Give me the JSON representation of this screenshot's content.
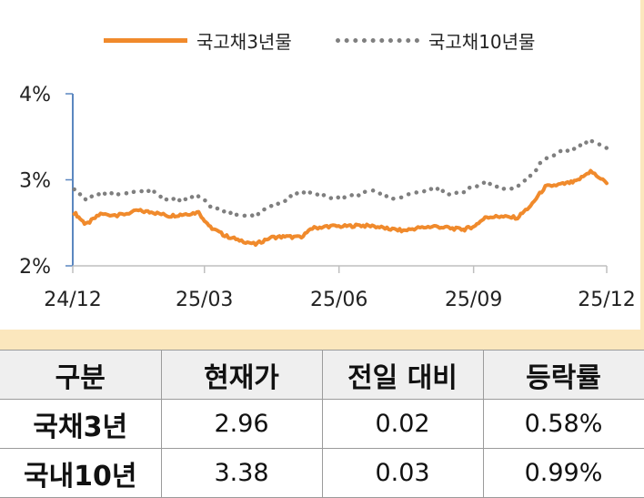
{
  "chart_data": {
    "type": "line",
    "x_ticks": [
      "24/12",
      "25/03",
      "25/06",
      "25/09",
      "25/12"
    ],
    "y_ticks": [
      "2%",
      "3%",
      "4%"
    ],
    "ylim": [
      2,
      4
    ],
    "xlim": [
      "2024-12",
      "2025-12"
    ],
    "legend_position": "top",
    "series": [
      {
        "name": "국고채3년물",
        "color": "#f08a2c",
        "style": "solid",
        "x": [
          "2024-12-02",
          "2024-12-10",
          "2024-12-20",
          "2025-01-02",
          "2025-01-15",
          "2025-01-25",
          "2025-02-05",
          "2025-02-15",
          "2025-02-25",
          "2025-03-05",
          "2025-03-15",
          "2025-03-25",
          "2025-04-05",
          "2025-04-15",
          "2025-04-25",
          "2025-05-05",
          "2025-05-15",
          "2025-05-25",
          "2025-06-05",
          "2025-06-15",
          "2025-06-25",
          "2025-07-05",
          "2025-07-15",
          "2025-07-25",
          "2025-08-05",
          "2025-08-15",
          "2025-08-25",
          "2025-09-01",
          "2025-09-10",
          "2025-09-20",
          "2025-10-01",
          "2025-10-10",
          "2025-10-20",
          "2025-11-01",
          "2025-11-10",
          "2025-11-20",
          "2025-12-01"
        ],
        "values": [
          2.62,
          2.48,
          2.6,
          2.59,
          2.64,
          2.62,
          2.58,
          2.6,
          2.62,
          2.45,
          2.35,
          2.3,
          2.25,
          2.33,
          2.34,
          2.33,
          2.44,
          2.46,
          2.46,
          2.47,
          2.46,
          2.43,
          2.41,
          2.44,
          2.46,
          2.44,
          2.42,
          2.46,
          2.57,
          2.57,
          2.56,
          2.7,
          2.92,
          2.95,
          2.98,
          3.1,
          2.96
        ]
      },
      {
        "name": "국고채10년물",
        "color": "#7f7f7f",
        "style": "dotted",
        "x": [
          "2024-12-02",
          "2024-12-10",
          "2024-12-20",
          "2025-01-02",
          "2025-01-15",
          "2025-01-25",
          "2025-02-05",
          "2025-02-15",
          "2025-02-25",
          "2025-03-05",
          "2025-03-15",
          "2025-03-25",
          "2025-04-05",
          "2025-04-15",
          "2025-04-25",
          "2025-05-05",
          "2025-05-15",
          "2025-05-25",
          "2025-06-05",
          "2025-06-15",
          "2025-06-25",
          "2025-07-05",
          "2025-07-15",
          "2025-07-25",
          "2025-08-05",
          "2025-08-15",
          "2025-08-25",
          "2025-09-01",
          "2025-09-10",
          "2025-09-20",
          "2025-10-01",
          "2025-10-10",
          "2025-10-20",
          "2025-11-01",
          "2025-11-10",
          "2025-11-20",
          "2025-12-01"
        ],
        "values": [
          2.9,
          2.78,
          2.85,
          2.84,
          2.86,
          2.86,
          2.76,
          2.77,
          2.82,
          2.7,
          2.62,
          2.58,
          2.58,
          2.7,
          2.76,
          2.86,
          2.85,
          2.8,
          2.8,
          2.83,
          2.87,
          2.79,
          2.8,
          2.86,
          2.9,
          2.84,
          2.86,
          2.93,
          2.97,
          2.88,
          2.91,
          3.05,
          3.25,
          3.33,
          3.38,
          3.45,
          3.37
        ]
      }
    ]
  },
  "table": {
    "headers": [
      "구분",
      "현재가",
      "전일 대비",
      "등락률"
    ],
    "rows": [
      [
        "국채3년",
        "2.96",
        "0.02",
        "0.58%"
      ],
      [
        "국내10년",
        "3.38",
        "0.03",
        "0.99%"
      ]
    ]
  }
}
